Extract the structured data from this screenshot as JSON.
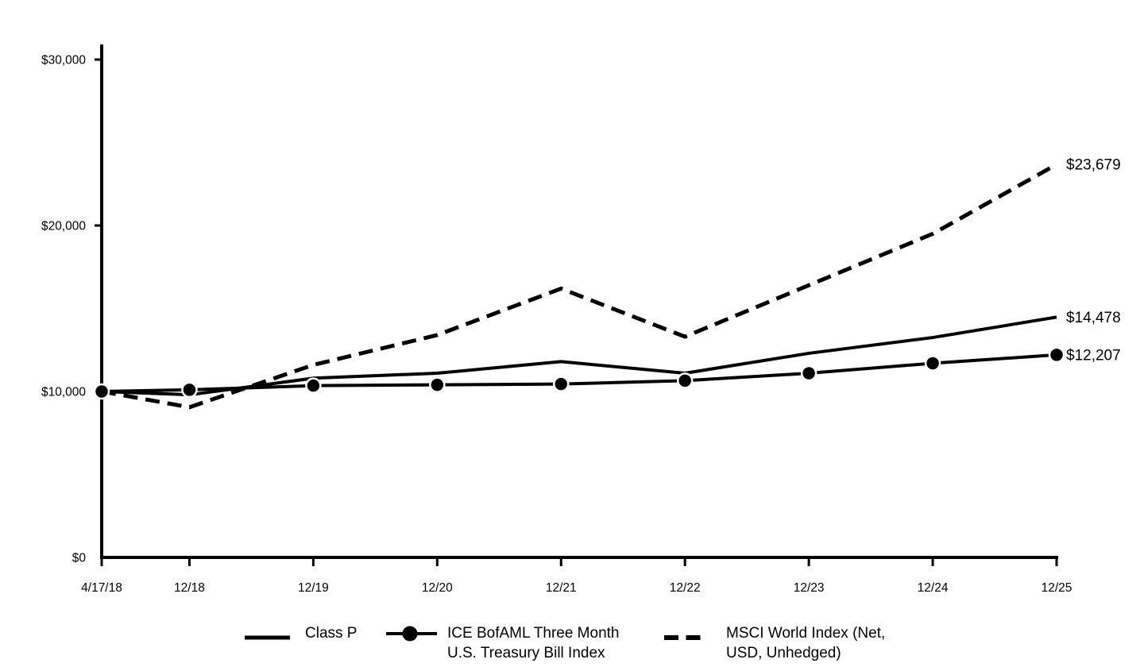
{
  "page": {
    "background": "#ffffff",
    "line_color": "#000000"
  },
  "chart_data": {
    "type": "line",
    "title": "",
    "x_categories": [
      "4/17/18",
      "12/18",
      "12/19",
      "12/20",
      "12/21",
      "12/22",
      "12/23",
      "12/24",
      "12/25"
    ],
    "x_month_offsets": [
      0,
      8.5,
      20.5,
      32.5,
      44.5,
      56.5,
      68.5,
      80.5,
      92.5
    ],
    "y_axis": {
      "min": 0,
      "max": 30000,
      "tick_values": [
        0,
        10000,
        20000,
        30000
      ],
      "tick_labels": [
        "$0",
        "$10,000",
        "$20,000",
        "$30,000"
      ]
    },
    "grid": false,
    "legend_position": "bottom",
    "series": [
      {
        "id": "class-p",
        "name": "Class P",
        "style": "solid",
        "marker": false,
        "values": [
          10000,
          9800,
          10800,
          11100,
          11800,
          11100,
          12300,
          13250,
          14478
        ],
        "end_label": "$14,478"
      },
      {
        "id": "tbill-index",
        "name": "ICE BofAML Three Month U.S. Treasury Bill Index",
        "style": "solid",
        "marker": true,
        "values": [
          10000,
          10100,
          10350,
          10400,
          10450,
          10650,
          11100,
          11700,
          12207
        ],
        "end_label": "$12,207"
      },
      {
        "id": "msci-world",
        "name": "MSCI World Index (Net, USD, Unhedged)",
        "style": "dashed",
        "marker": false,
        "values": [
          10000,
          9050,
          11600,
          13400,
          16200,
          13300,
          16400,
          19500,
          23679
        ],
        "end_label": "$23,679"
      }
    ]
  },
  "legend": {
    "items": [
      {
        "label_lines": [
          "Class P"
        ]
      },
      {
        "label_lines": [
          "ICE BofAML Three Month",
          "U.S. Treasury Bill Index"
        ]
      },
      {
        "label_lines": [
          "MSCI World Index (Net,",
          "USD, Unhedged)"
        ]
      }
    ]
  }
}
